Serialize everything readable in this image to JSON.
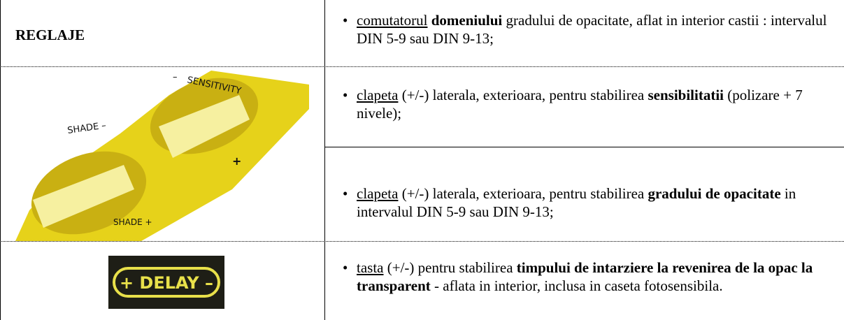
{
  "table": {
    "header": "REGLAJE",
    "rows": [
      [
        "comutatorul",
        "domeniului",
        "gradului de opacitate, aflat in interior castii : intervalul  DIN 5-9  sau  DIN 9-13;"
      ],
      [
        "clapeta",
        "(+/-)",
        "laterala, exterioara, pentru stabilirea",
        "sensibilitatii",
        "(polizare + 7 nivele);"
      ],
      [
        "clapeta",
        "(+/-)",
        "laterala, exterioara, pentru stabilirea",
        "gradului de opacitate",
        "in intervalul DIN 5-9 sau DIN 9-13;"
      ],
      [
        "tasta",
        "(+/-)",
        "pentru stabilirea",
        "timpului de intarziere la revenirea de la opac la transparent",
        "- aflata in interior, inclusa in caseta fotosensibila."
      ]
    ]
  },
  "knobs": {
    "minus_sensitivity": "–",
    "sensitivity": "SENSITIVITY",
    "shade_minus": "SHADE –",
    "plus": "+",
    "shade_plus": "SHADE +"
  },
  "delay": {
    "label": "+ DELAY –"
  }
}
